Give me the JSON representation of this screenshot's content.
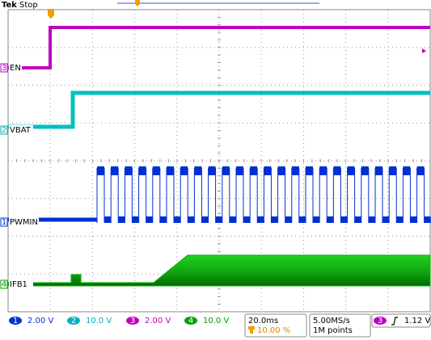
{
  "header": {
    "brand": "Tek",
    "status": "Stop"
  },
  "channels": [
    {
      "number": "3",
      "label": "EN"
    },
    {
      "number": "2",
      "label": "VBAT"
    },
    {
      "number": "1",
      "label": "PWMIN"
    },
    {
      "number": "4",
      "label": "IFB1"
    }
  ],
  "status_bar": {
    "channels": [
      {
        "number": "1",
        "scale": "2.00 V"
      },
      {
        "number": "2",
        "scale": "10.0 V"
      },
      {
        "number": "3",
        "scale": "2.00 V"
      },
      {
        "number": "4",
        "scale": "10.0 V"
      }
    ],
    "timebase": "20.0ms",
    "trigger_position": "10.00 %",
    "sample_rate": "5.00MS/s",
    "record_length": "1M points",
    "trigger": {
      "source": "3",
      "level": "1.12 V"
    }
  }
}
